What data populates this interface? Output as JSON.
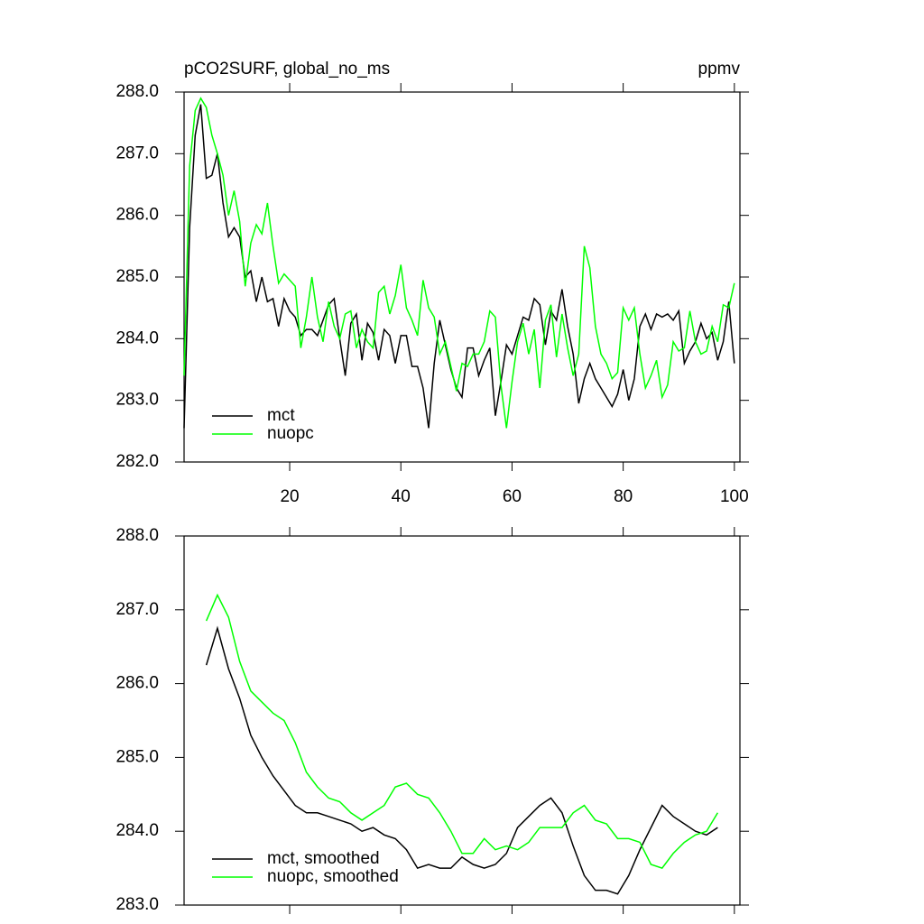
{
  "chart_data": [
    {
      "type": "line",
      "title": "pCO2SURF, global_no_ms",
      "right_title": "ppmv",
      "x": [
        1,
        2,
        3,
        4,
        5,
        6,
        7,
        8,
        9,
        10,
        11,
        12,
        13,
        14,
        15,
        16,
        17,
        18,
        19,
        20,
        21,
        22,
        23,
        24,
        25,
        26,
        27,
        28,
        29,
        30,
        31,
        32,
        33,
        34,
        35,
        36,
        37,
        38,
        39,
        40,
        41,
        42,
        43,
        44,
        45,
        46,
        47,
        48,
        49,
        50,
        51,
        52,
        53,
        54,
        55,
        56,
        57,
        58,
        59,
        60,
        61,
        62,
        63,
        64,
        65,
        66,
        67,
        68,
        69,
        70,
        71,
        72,
        73,
        74,
        75,
        76,
        77,
        78,
        79,
        80,
        81,
        82,
        83,
        84,
        85,
        86,
        87,
        88,
        89,
        90,
        91,
        92,
        93,
        94,
        95,
        96,
        97,
        98,
        99,
        100
      ],
      "series": [
        {
          "name": "mct",
          "color": "#000000",
          "values": [
            282.55,
            285.8,
            287.3,
            287.8,
            286.6,
            286.65,
            287.0,
            286.2,
            285.65,
            285.8,
            285.65,
            285.0,
            285.1,
            284.6,
            285.0,
            284.6,
            284.65,
            284.2,
            284.65,
            284.45,
            284.35,
            284.05,
            284.15,
            284.15,
            284.05,
            284.3,
            284.55,
            284.65,
            284.0,
            283.4,
            284.25,
            284.4,
            283.65,
            284.25,
            284.1,
            283.65,
            284.15,
            284.05,
            283.6,
            284.05,
            284.05,
            283.55,
            283.55,
            283.2,
            282.55,
            283.6,
            284.3,
            283.9,
            283.5,
            283.2,
            283.05,
            283.85,
            283.85,
            283.4,
            283.65,
            283.85,
            282.75,
            283.3,
            283.9,
            283.75,
            284.05,
            284.35,
            284.3,
            284.65,
            284.55,
            283.9,
            284.45,
            284.3,
            284.8,
            284.2,
            283.75,
            282.95,
            283.35,
            283.6,
            283.35,
            283.2,
            283.05,
            282.9,
            283.1,
            283.5,
            283.0,
            283.35,
            284.2,
            284.4,
            284.15,
            284.4,
            284.35,
            284.4,
            284.3,
            284.45,
            283.6,
            283.8,
            283.95,
            284.25,
            284.0,
            284.1,
            283.65,
            283.95,
            284.6,
            283.6
          ]
        },
        {
          "name": "nuopc",
          "color": "#00ff00",
          "values": [
            283.4,
            286.8,
            287.7,
            287.9,
            287.75,
            287.3,
            287.0,
            286.65,
            286.0,
            286.4,
            285.9,
            284.85,
            285.55,
            285.85,
            285.7,
            286.2,
            285.5,
            284.9,
            285.05,
            284.95,
            284.85,
            283.85,
            284.35,
            285.0,
            284.35,
            283.95,
            284.6,
            284.2,
            284.0,
            284.4,
            284.45,
            283.85,
            284.15,
            283.95,
            283.85,
            284.75,
            284.85,
            284.4,
            284.7,
            285.2,
            284.5,
            284.3,
            284.05,
            284.95,
            284.5,
            284.35,
            283.75,
            283.95,
            283.55,
            283.15,
            283.6,
            283.55,
            283.75,
            283.75,
            283.95,
            284.45,
            284.35,
            283.25,
            282.55,
            283.3,
            283.95,
            284.25,
            283.75,
            284.15,
            283.2,
            284.3,
            284.55,
            283.7,
            284.4,
            283.85,
            283.4,
            283.75,
            285.5,
            285.15,
            284.2,
            283.75,
            283.6,
            283.35,
            283.45,
            284.5,
            284.3,
            284.5,
            283.75,
            283.2,
            283.4,
            283.65,
            283.05,
            283.25,
            283.95,
            283.8,
            283.85,
            284.45,
            283.95,
            283.75,
            283.8,
            284.2,
            283.95,
            284.55,
            284.5,
            284.9
          ]
        }
      ],
      "xlim": [
        1,
        101
      ],
      "xticks": [
        20,
        40,
        60,
        80,
        100
      ],
      "ylim": [
        282,
        288
      ],
      "yticks": [
        {
          "value": 282,
          "label": "282.0"
        },
        {
          "value": 283,
          "label": "283.0"
        },
        {
          "value": 284,
          "label": "284.0"
        },
        {
          "value": 285,
          "label": "285.0"
        },
        {
          "value": 286,
          "label": "286.0"
        },
        {
          "value": 287,
          "label": "287.0"
        },
        {
          "value": 288,
          "label": "288.0"
        }
      ],
      "legend": "lower left"
    },
    {
      "type": "line",
      "x": [
        5,
        7,
        9,
        11,
        13,
        15,
        17,
        19,
        21,
        23,
        25,
        27,
        29,
        31,
        33,
        35,
        37,
        39,
        41,
        43,
        45,
        47,
        49,
        51,
        53,
        55,
        57,
        59,
        61,
        63,
        65,
        67,
        69,
        71,
        73,
        75,
        77,
        79,
        81,
        83,
        85,
        87,
        89,
        91,
        93,
        95,
        97
      ],
      "series": [
        {
          "name": "mct, smoothed",
          "color": "#000000",
          "values": [
            286.25,
            286.75,
            286.2,
            285.8,
            285.3,
            285.0,
            284.75,
            284.55,
            284.35,
            284.25,
            284.25,
            284.2,
            284.15,
            284.1,
            284.0,
            284.05,
            283.95,
            283.9,
            283.75,
            283.5,
            283.55,
            283.5,
            283.5,
            283.65,
            283.55,
            283.5,
            283.55,
            283.7,
            284.05,
            284.2,
            284.35,
            284.45,
            284.25,
            283.8,
            283.4,
            283.2,
            283.2,
            283.15,
            283.4,
            283.75,
            284.05,
            284.35,
            284.2,
            284.1,
            284.0,
            283.95,
            284.05
          ]
        },
        {
          "name": "nuopc, smoothed",
          "color": "#00ff00",
          "values": [
            286.85,
            287.2,
            286.9,
            286.3,
            285.9,
            285.75,
            285.6,
            285.5,
            285.2,
            284.8,
            284.6,
            284.45,
            284.4,
            284.25,
            284.15,
            284.25,
            284.35,
            284.6,
            284.65,
            284.5,
            284.45,
            284.25,
            284.0,
            283.7,
            283.7,
            283.9,
            283.75,
            283.8,
            283.75,
            283.85,
            284.05,
            284.05,
            284.05,
            284.25,
            284.35,
            284.15,
            284.1,
            283.9,
            283.9,
            283.85,
            283.55,
            283.5,
            283.7,
            283.85,
            283.95,
            284.0,
            284.25
          ]
        }
      ],
      "xlim": [
        1,
        101
      ],
      "xticks": [
        20,
        40,
        60,
        80,
        100
      ],
      "ylim": [
        283,
        288
      ],
      "yticks": [
        {
          "value": 283,
          "label": "283.0"
        },
        {
          "value": 284,
          "label": "284.0"
        },
        {
          "value": 285,
          "label": "285.0"
        },
        {
          "value": 286,
          "label": "286.0"
        },
        {
          "value": 287,
          "label": "287.0"
        },
        {
          "value": 288,
          "label": "288.0"
        }
      ],
      "legend": "lower left"
    }
  ]
}
